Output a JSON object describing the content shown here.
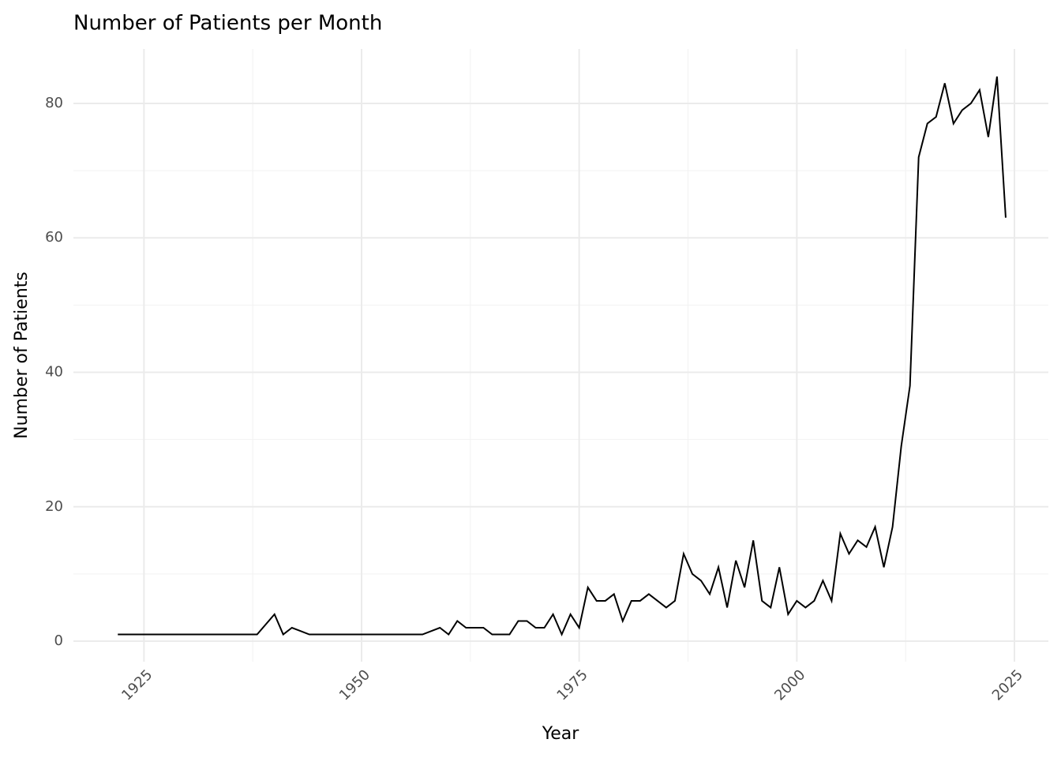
{
  "chart_data": {
    "type": "line",
    "title": "Number of Patients per Month",
    "x_label": "Year",
    "y_label": "Number of Patients",
    "x": [
      1922,
      1923,
      1924,
      1925,
      1926,
      1927,
      1928,
      1929,
      1930,
      1931,
      1932,
      1933,
      1934,
      1935,
      1936,
      1937,
      1938,
      1940,
      1941,
      1942,
      1944,
      1945,
      1946,
      1947,
      1948,
      1949,
      1950,
      1951,
      1952,
      1953,
      1954,
      1955,
      1956,
      1957,
      1959,
      1960,
      1961,
      1962,
      1963,
      1964,
      1965,
      1966,
      1967,
      1968,
      1969,
      1970,
      1971,
      1972,
      1973,
      1974,
      1975,
      1976,
      1977,
      1978,
      1979,
      1980,
      1981,
      1982,
      1983,
      1984,
      1985,
      1986,
      1987,
      1988,
      1989,
      1990,
      1991,
      1992,
      1993,
      1994,
      1995,
      1996,
      1997,
      1998,
      1999,
      2000,
      2001,
      2002,
      2003,
      2004,
      2005,
      2006,
      2007,
      2008,
      2009,
      2010,
      2011,
      2012,
      2013,
      2014,
      2015,
      2016,
      2017,
      2018,
      2019,
      2020,
      2021,
      2022,
      2023,
      2024
    ],
    "series": [
      {
        "name": "Patients",
        "color": "#000000",
        "values": [
          1,
          1,
          1,
          1,
          1,
          1,
          1,
          1,
          1,
          1,
          1,
          1,
          1,
          1,
          1,
          1,
          1,
          4,
          1,
          2,
          1,
          1,
          1,
          1,
          1,
          1,
          1,
          1,
          1,
          1,
          1,
          1,
          1,
          1,
          2,
          1,
          3,
          2,
          2,
          2,
          1,
          1,
          1,
          3,
          3,
          2,
          2,
          4,
          1,
          4,
          2,
          8,
          6,
          6,
          7,
          3,
          6,
          6,
          7,
          6,
          5,
          6,
          13,
          10,
          9,
          7,
          11,
          5,
          12,
          8,
          15,
          6,
          5,
          11,
          4,
          6,
          5,
          6,
          9,
          6,
          16,
          13,
          15,
          14,
          17,
          11,
          17,
          29,
          38,
          72,
          77,
          78,
          83,
          77,
          79,
          80,
          82,
          75,
          84,
          63
        ]
      }
    ],
    "xlim": [
      1916.9,
      2028.9
    ],
    "ylim": [
      -3.05,
      88.1
    ],
    "xticks": [
      1925,
      1950,
      1975,
      2000,
      2025
    ],
    "yticks": [
      0,
      20,
      40,
      60,
      80
    ],
    "grid": true,
    "minor_grid": true
  }
}
